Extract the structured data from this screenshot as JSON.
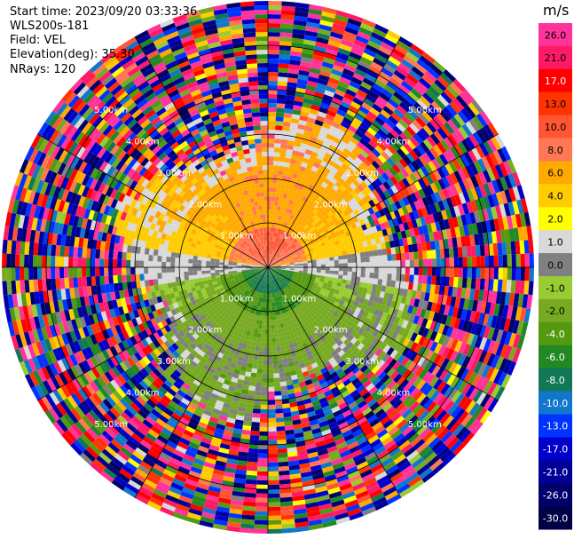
{
  "info": {
    "start_time": "Start time: 2023/09/20 03:33:36",
    "instrument": "WLS200s-181",
    "field": "Field: VEL",
    "elevation": "Elevation(deg): 35.30",
    "nrays": "NRays: 120"
  },
  "chart_data": {
    "type": "heatmap",
    "subtype": "polar-ppi",
    "nrays": 120,
    "max_range_km": 6.0,
    "range_rings_km": [
      1.0,
      2.0,
      3.0,
      4.0,
      5.0
    ],
    "range_ring_labels": [
      "1.00km",
      "2.00km",
      "3.00km",
      "4.00km",
      "5.00km"
    ],
    "colorbar": {
      "unit": "m/s",
      "levels": [
        26.0,
        21.0,
        17.0,
        13.0,
        10.0,
        8.0,
        6.0,
        4.0,
        2.0,
        1.0,
        0.0,
        -1.0,
        -2.0,
        -4.0,
        -6.0,
        -8.0,
        -10.0,
        -13.0,
        -17.0,
        -21.0,
        -26.0,
        -30.0
      ],
      "tick_labels": [
        "26.0",
        "21.0",
        "17.0",
        "13.0",
        "10.0",
        "8.0",
        "6.0",
        "4.0",
        "2.0",
        "1.0",
        "0.0",
        "-1.0",
        "-2.0",
        "-4.0",
        "-6.0",
        "-8.0",
        "-10.0",
        "-13.0",
        "-17.0",
        "-21.0",
        "-26.0",
        "-30.0"
      ],
      "colors": [
        "#ff3399",
        "#ff1a66",
        "#ff0000",
        "#ff3300",
        "#ff5533",
        "#ff7755",
        "#ffaa00",
        "#ffcc00",
        "#ffff00",
        "#d9d9d9",
        "#808080",
        "#99cc33",
        "#77aa22",
        "#559911",
        "#228822",
        "#117755",
        "#1177cc",
        "#0033ff",
        "#0000cc",
        "#000099",
        "#00006b",
        "#000044"
      ]
    },
    "pattern": {
      "center": "slow near-zero velocities",
      "north_sector": "positive 2-8 m/s (yellow/orange)",
      "south_sector": "negative 1-6 m/s (green/blue)",
      "outer_gates": "noisy, all values"
    },
    "grid": true
  }
}
